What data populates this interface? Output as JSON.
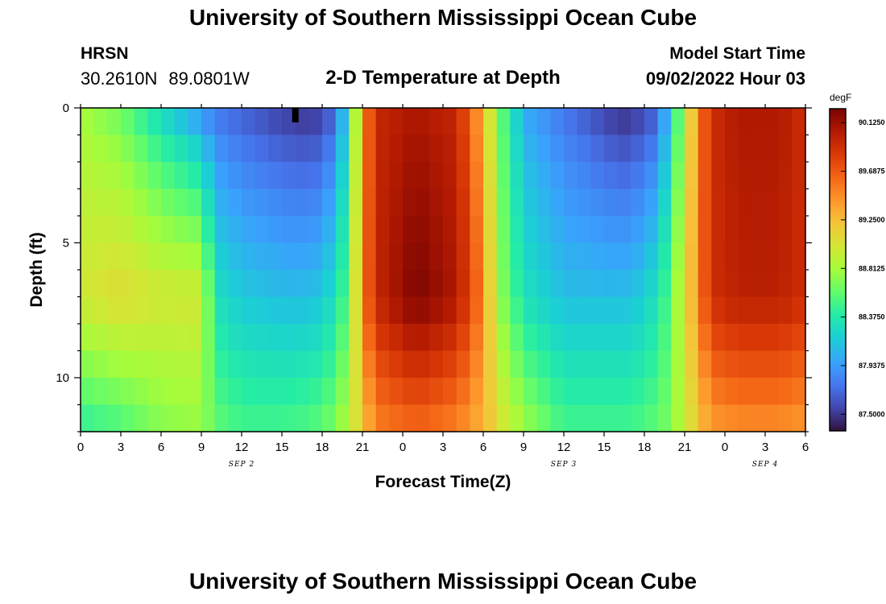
{
  "header": {
    "title": "University of Southern Mississippi Ocean Cube",
    "station": "HRSN",
    "lat": "30.2610N",
    "lon": "89.0801W",
    "subtitle": "2-D Temperature at Depth",
    "model_start_label": "Model Start Time",
    "model_start_value": "09/02/2022 Hour 03"
  },
  "footer": {
    "title": "University of Southern Mississippi Ocean Cube"
  },
  "chart_data": {
    "type": "heatmap",
    "title": "2-D Temperature at Depth",
    "xlabel": "Forecast Time(Z)",
    "ylabel": "Depth (ft)",
    "x_hours_range": [
      0,
      54
    ],
    "ylim": [
      0,
      12
    ],
    "y_ticks": [
      0,
      5,
      10
    ],
    "x_tick_labels": [
      "0",
      "3",
      "6",
      "9",
      "12",
      "15",
      "18",
      "21",
      "0",
      "3",
      "6",
      "9",
      "12",
      "15",
      "18",
      "21",
      "0",
      "3",
      "6"
    ],
    "date_labels": [
      {
        "label": "SEP 2",
        "hour": 12
      },
      {
        "label": "SEP 3",
        "hour": 36
      },
      {
        "label": "SEP 4",
        "hour": 51
      }
    ],
    "depth_rows": 12,
    "time_columns": 54,
    "units": "degF",
    "color_range": [
      87.35,
      90.25
    ],
    "colorbar_ticks": [
      "90.1250",
      "89.6875",
      "89.2500",
      "88.8125",
      "88.3750",
      "87.9375",
      "87.5000"
    ],
    "colorbar_tick_values": [
      90.125,
      89.6875,
      89.25,
      88.8125,
      88.375,
      87.9375,
      87.5
    ],
    "current_time_marker_hour": 16,
    "profile_model": {
      "time_keys_hours": [
        0,
        3,
        6,
        9,
        10,
        12,
        15,
        17,
        18,
        19,
        20,
        21,
        22,
        25,
        28,
        30,
        31,
        33,
        36,
        40,
        41,
        43,
        44,
        46,
        47,
        49,
        52,
        54
      ],
      "surface_degF": [
        88.8,
        88.6,
        88.2,
        87.85,
        87.75,
        87.65,
        87.5,
        87.45,
        87.5,
        87.7,
        88.3,
        89.4,
        89.95,
        90.05,
        89.95,
        89.3,
        88.7,
        88.0,
        87.75,
        87.45,
        87.45,
        87.65,
        88.2,
        89.5,
        89.9,
        90.05,
        90.05,
        89.9
      ],
      "bottom_degF": [
        88.4,
        88.5,
        88.7,
        88.75,
        88.6,
        88.5,
        88.5,
        88.55,
        88.6,
        88.7,
        88.9,
        89.2,
        89.5,
        89.6,
        89.5,
        89.3,
        89.1,
        88.8,
        88.5,
        88.5,
        88.5,
        88.6,
        88.7,
        89.2,
        89.4,
        89.45,
        89.45,
        89.4
      ],
      "midwater_extreme_degF": [
        89.0,
        89.1,
        89.0,
        89.0,
        88.3,
        88.15,
        88.1,
        88.1,
        88.15,
        88.3,
        88.6,
        89.5,
        89.95,
        90.25,
        90.05,
        89.5,
        88.8,
        88.3,
        88.1,
        88.1,
        88.1,
        88.3,
        88.6,
        89.5,
        89.9,
        90.0,
        90.0,
        89.9
      ],
      "midwater_extreme_depth_ft": 7
    }
  }
}
